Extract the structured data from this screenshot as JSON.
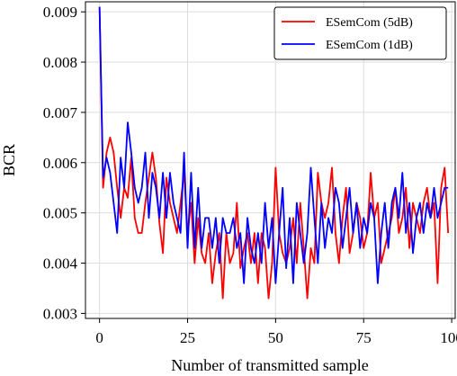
{
  "chart_data": {
    "type": "line",
    "title": "",
    "xlabel": "Number of transmitted sample",
    "ylabel": "BCR",
    "xlim": [
      -4,
      101
    ],
    "ylim": [
      0.0029,
      0.0092
    ],
    "xticks": [
      0,
      25,
      50,
      75,
      100
    ],
    "yticks": [
      0.003,
      0.004,
      0.005,
      0.006,
      0.007,
      0.008,
      0.009
    ],
    "xtick_labels": [
      "0",
      "25",
      "50",
      "75",
      "100"
    ],
    "ytick_labels": [
      "0.003",
      "0.004",
      "0.005",
      "0.006",
      "0.007",
      "0.008",
      "0.009"
    ],
    "grid": true,
    "legend": "top-right",
    "series": [
      {
        "name": "ESemCom (5dB)",
        "color": "#ff0000",
        "values": [
          0.0091,
          0.0055,
          0.0062,
          0.0065,
          0.0062,
          0.0055,
          0.0049,
          0.0055,
          0.0053,
          0.0061,
          0.0049,
          0.0046,
          0.0046,
          0.0052,
          0.0057,
          0.0062,
          0.0057,
          0.0048,
          0.0042,
          0.0057,
          0.0052,
          0.0049,
          0.0046,
          0.0052,
          0.0058,
          0.0046,
          0.0052,
          0.004,
          0.0049,
          0.0042,
          0.004,
          0.0046,
          0.0036,
          0.0042,
          0.0046,
          0.0033,
          0.0046,
          0.004,
          0.0042,
          0.0052,
          0.0039,
          0.0043,
          0.0046,
          0.004,
          0.0046,
          0.0036,
          0.0046,
          0.0043,
          0.0033,
          0.004,
          0.0059,
          0.0046,
          0.0042,
          0.004,
          0.0043,
          0.0049,
          0.004,
          0.0052,
          0.0043,
          0.0033,
          0.0043,
          0.004,
          0.0058,
          0.0052,
          0.0049,
          0.0052,
          0.0059,
          0.0046,
          0.004,
          0.0049,
          0.0055,
          0.0042,
          0.0046,
          0.0052,
          0.0049,
          0.0043,
          0.0046,
          0.0058,
          0.0049,
          0.0052,
          0.004,
          0.0043,
          0.0046,
          0.0049,
          0.0055,
          0.0046,
          0.0049,
          0.0055,
          0.0043,
          0.0052,
          0.0049,
          0.0046,
          0.0052,
          0.0055,
          0.0049,
          0.0052,
          0.0036,
          0.0055,
          0.0059,
          0.0046
        ]
      },
      {
        "name": "ESemCom (1dB)",
        "color": "#0000ff",
        "values": [
          0.0091,
          0.0057,
          0.0061,
          0.0058,
          0.0052,
          0.0046,
          0.0061,
          0.0055,
          0.0068,
          0.0062,
          0.0055,
          0.0052,
          0.0055,
          0.0062,
          0.0049,
          0.0058,
          0.0055,
          0.0049,
          0.0058,
          0.0049,
          0.0058,
          0.0052,
          0.0049,
          0.0046,
          0.0062,
          0.0043,
          0.0058,
          0.0043,
          0.0055,
          0.0043,
          0.0049,
          0.0049,
          0.0043,
          0.0049,
          0.004,
          0.0049,
          0.0046,
          0.0046,
          0.0049,
          0.0043,
          0.0046,
          0.0036,
          0.0049,
          0.0043,
          0.004,
          0.0046,
          0.004,
          0.0052,
          0.0043,
          0.0049,
          0.0036,
          0.0046,
          0.0055,
          0.0039,
          0.0049,
          0.0036,
          0.0052,
          0.0046,
          0.004,
          0.0046,
          0.0059,
          0.0049,
          0.004,
          0.0052,
          0.0043,
          0.0049,
          0.0046,
          0.0055,
          0.0052,
          0.0043,
          0.0049,
          0.0055,
          0.0046,
          0.0052,
          0.0043,
          0.0049,
          0.0046,
          0.0052,
          0.0049,
          0.0036,
          0.0046,
          0.0052,
          0.0043,
          0.0052,
          0.0055,
          0.0049,
          0.0058,
          0.0046,
          0.0052,
          0.0042,
          0.0049,
          0.0052,
          0.0046,
          0.0052,
          0.0049,
          0.0055,
          0.0049,
          0.0052,
          0.0055,
          0.0055
        ]
      }
    ]
  }
}
